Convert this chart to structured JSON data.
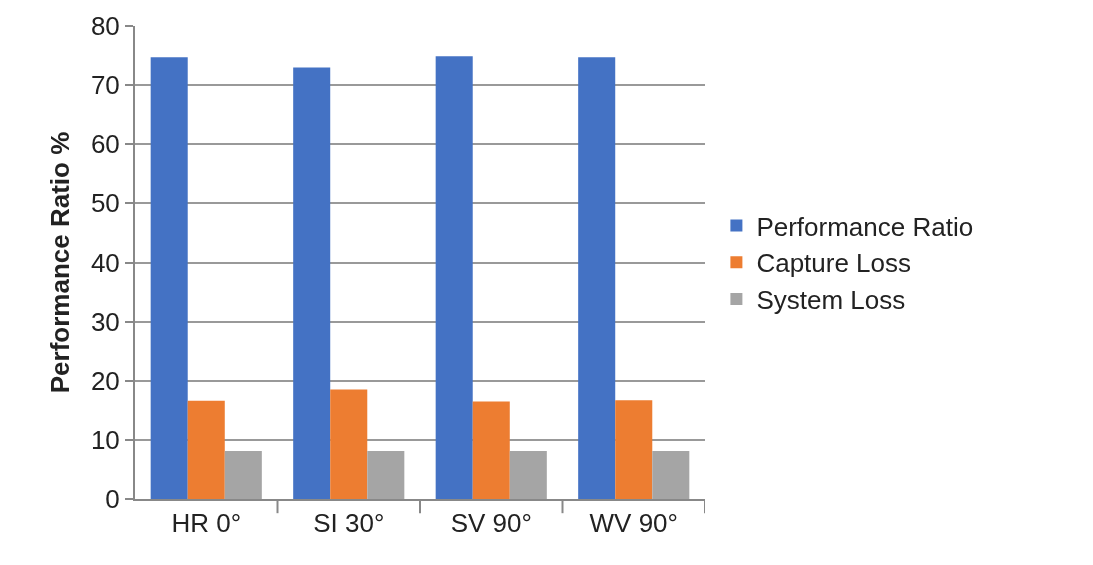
{
  "chart_data": {
    "type": "bar",
    "ylabel": "Performance Ratio %",
    "categories": [
      "HR 0°",
      "SI 30°",
      "SV 90°",
      "WV 90°"
    ],
    "series": [
      {
        "name": "Performance Ratio",
        "color": "#4472c4",
        "values": [
          74.7,
          73.0,
          74.9,
          74.7
        ]
      },
      {
        "name": "Capture Loss",
        "color": "#ed7d31",
        "values": [
          16.6,
          18.5,
          16.5,
          16.7
        ]
      },
      {
        "name": "System Loss",
        "color": "#a5a5a5",
        "values": [
          8.1,
          8.1,
          8.1,
          8.1
        ]
      }
    ],
    "ylim": [
      0,
      80
    ],
    "yticks": [
      0,
      10,
      20,
      30,
      40,
      50,
      60,
      70,
      80
    ],
    "grid": "y",
    "legend": "right"
  }
}
